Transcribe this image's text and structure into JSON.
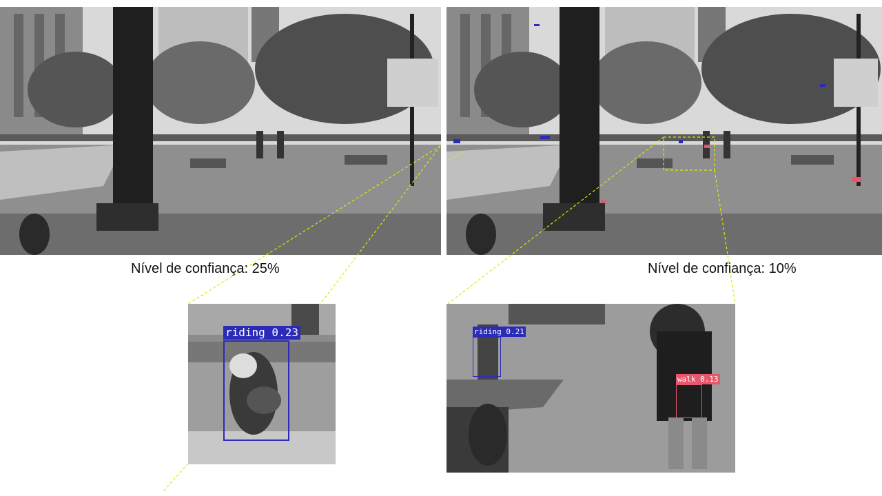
{
  "panels": [
    {
      "caption": "Nível de confiança: 25%"
    },
    {
      "caption": "Nível de confiança: 10%"
    }
  ],
  "zooms": [
    {
      "detections": [
        {
          "label": "riding 0.23",
          "class": "riding",
          "confidence": 0.23,
          "color": "#2b2bb8"
        }
      ]
    },
    {
      "detections": [
        {
          "label": "riding 0.21",
          "class": "riding",
          "confidence": 0.21,
          "color": "#2b2bb8"
        },
        {
          "label": "walk 0.13",
          "class": "walk",
          "confidence": 0.13,
          "color": "#e8566b"
        }
      ]
    }
  ],
  "colors": {
    "connector": "#e6e600",
    "riding": "#2b2bb8",
    "walk": "#e8566b"
  }
}
